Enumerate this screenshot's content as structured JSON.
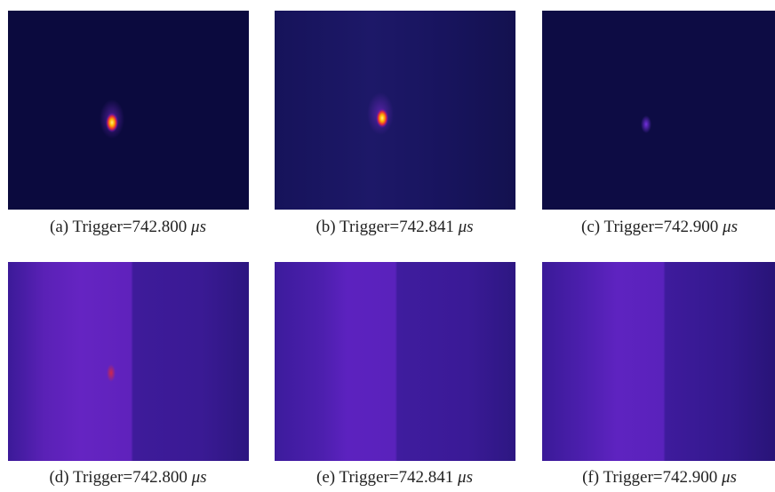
{
  "panels": [
    {
      "label": "(a)",
      "text": "Trigger=742.800",
      "unit": "μs"
    },
    {
      "label": "(b)",
      "text": "Trigger=742.841",
      "unit": "μs"
    },
    {
      "label": "(c)",
      "text": "Trigger=742.900",
      "unit": "μs"
    },
    {
      "label": "(d)",
      "text": "Trigger=742.800",
      "unit": "μs"
    },
    {
      "label": "(e)",
      "text": "Trigger=742.841",
      "unit": "μs"
    },
    {
      "label": "(f)",
      "text": "Trigger=742.900",
      "unit": "μs"
    }
  ]
}
